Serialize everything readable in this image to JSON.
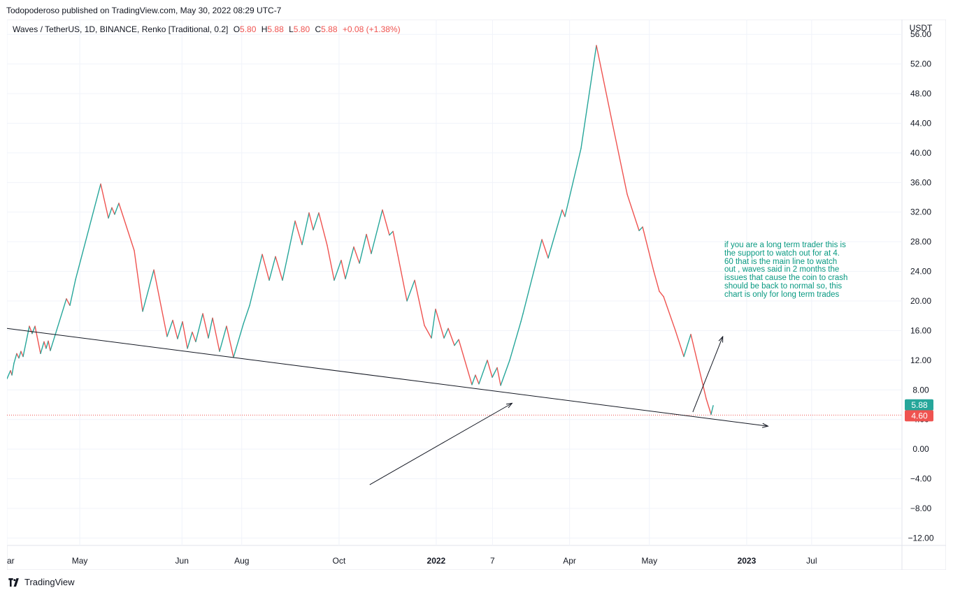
{
  "header": {
    "published": "Todopoderoso published on TradingView.com, May 30, 2022 08:29 UTC-7"
  },
  "legend": {
    "symbol": "Waves / TetherUS, 1D, BINANCE, Renko [Traditional, 0.2]",
    "o_label": "O",
    "o_value": "5.80",
    "h_label": "H",
    "h_value": "5.88",
    "l_label": "L",
    "l_value": "5.80",
    "c_label": "C",
    "c_value": "5.88",
    "change": "+0.08 (+1.38%)"
  },
  "note": {
    "lines": [
      "if you are a long term trader this is",
      "the support to watch out for at 4.",
      "60    that is the main line to watch",
      "out ,  waves said in 2 months   the",
      "issues that cause the coin to crash",
      "should be back to normal so,  this",
      "chart is only for long term trades"
    ]
  },
  "footer": {
    "brand": "TradingView"
  },
  "chart_data": {
    "type": "line",
    "title": "Waves / TetherUS, 1D, BINANCE, Renko [Traditional, 0.2]",
    "ylabel": "USDT",
    "ylim": [
      -13,
      58
    ],
    "y_ticks": [
      "56.00",
      "52.00",
      "48.00",
      "44.00",
      "40.00",
      "36.00",
      "32.00",
      "28.00",
      "24.00",
      "20.00",
      "16.00",
      "12.00",
      "8.00",
      "4.00",
      "0.00",
      "−4.00",
      "−8.00",
      "−12.00"
    ],
    "y_tick_values": [
      56,
      52,
      48,
      44,
      40,
      36,
      32,
      28,
      24,
      20,
      16,
      12,
      8,
      4,
      0,
      -4,
      -8,
      -12
    ],
    "x_ticks": [
      {
        "label": "Mar",
        "shown": "ar",
        "t": 0.0,
        "bold": false
      },
      {
        "label": "May",
        "shown": "May",
        "t": 0.0813,
        "bold": false
      },
      {
        "label": "Jun",
        "shown": "Jun",
        "t": 0.1955,
        "bold": false
      },
      {
        "label": "Aug",
        "shown": "Aug",
        "t": 0.2623,
        "bold": false
      },
      {
        "label": "Oct",
        "shown": "Oct",
        "t": 0.371,
        "bold": false
      },
      {
        "label": "2022",
        "shown": "2022",
        "t": 0.4796,
        "bold": true
      },
      {
        "label": "7",
        "shown": "7",
        "t": 0.5425,
        "bold": false
      },
      {
        "label": "Apr",
        "shown": "Apr",
        "t": 0.6286,
        "bold": false
      },
      {
        "label": "May",
        "shown": "May",
        "t": 0.7178,
        "bold": false
      },
      {
        "label": "2023",
        "shown": "2023",
        "t": 0.8265,
        "bold": true
      },
      {
        "label": "Jul",
        "shown": "Jul",
        "t": 0.8991,
        "bold": false
      }
    ],
    "series": [
      {
        "name": "WAVESUSDT Renko",
        "points": [
          [
            0.0,
            9.5
          ],
          [
            0.0039,
            10.6
          ],
          [
            0.0055,
            10.0
          ],
          [
            0.0078,
            11.6
          ],
          [
            0.0109,
            12.9
          ],
          [
            0.0133,
            12.3
          ],
          [
            0.0156,
            13.2
          ],
          [
            0.018,
            12.5
          ],
          [
            0.025,
            16.6
          ],
          [
            0.0281,
            15.6
          ],
          [
            0.0313,
            16.6
          ],
          [
            0.0375,
            12.9
          ],
          [
            0.0414,
            14.5
          ],
          [
            0.0437,
            13.6
          ],
          [
            0.0461,
            14.6
          ],
          [
            0.0484,
            13.3
          ],
          [
            0.0664,
            20.3
          ],
          [
            0.0703,
            19.4
          ],
          [
            0.0766,
            22.9
          ],
          [
            0.1047,
            35.8
          ],
          [
            0.1133,
            31.2
          ],
          [
            0.1172,
            32.6
          ],
          [
            0.1203,
            31.7
          ],
          [
            0.125,
            33.2
          ],
          [
            0.1422,
            26.8
          ],
          [
            0.1516,
            18.6
          ],
          [
            0.1641,
            24.2
          ],
          [
            0.1789,
            15.2
          ],
          [
            0.1852,
            17.4
          ],
          [
            0.1906,
            14.9
          ],
          [
            0.1961,
            17.2
          ],
          [
            0.2016,
            13.6
          ],
          [
            0.207,
            15.8
          ],
          [
            0.2109,
            14.5
          ],
          [
            0.2188,
            18.3
          ],
          [
            0.225,
            15.0
          ],
          [
            0.2297,
            17.7
          ],
          [
            0.2375,
            13.2
          ],
          [
            0.2453,
            16.6
          ],
          [
            0.2531,
            12.4
          ],
          [
            0.2641,
            16.9
          ],
          [
            0.2711,
            19.4
          ],
          [
            0.2852,
            26.3
          ],
          [
            0.293,
            22.8
          ],
          [
            0.3,
            26.0
          ],
          [
            0.3078,
            22.8
          ],
          [
            0.3219,
            30.8
          ],
          [
            0.3297,
            27.6
          ],
          [
            0.3375,
            31.9
          ],
          [
            0.3422,
            29.6
          ],
          [
            0.3484,
            31.9
          ],
          [
            0.3578,
            27.5
          ],
          [
            0.3656,
            22.8
          ],
          [
            0.3734,
            25.5
          ],
          [
            0.3781,
            23.0
          ],
          [
            0.3875,
            27.3
          ],
          [
            0.3938,
            25.1
          ],
          [
            0.4016,
            29.0
          ],
          [
            0.407,
            26.4
          ],
          [
            0.4195,
            32.3
          ],
          [
            0.4273,
            28.9
          ],
          [
            0.4313,
            29.4
          ],
          [
            0.4367,
            26.2
          ],
          [
            0.4469,
            20.0
          ],
          [
            0.4555,
            22.8
          ],
          [
            0.4664,
            16.7
          ],
          [
            0.4742,
            15.0
          ],
          [
            0.4789,
            18.9
          ],
          [
            0.4883,
            15.0
          ],
          [
            0.493,
            16.3
          ],
          [
            0.5,
            14.0
          ],
          [
            0.5047,
            14.8
          ],
          [
            0.5195,
            8.7
          ],
          [
            0.5234,
            10.0
          ],
          [
            0.5273,
            8.8
          ],
          [
            0.5367,
            12.0
          ],
          [
            0.5422,
            9.7
          ],
          [
            0.5477,
            11.0
          ],
          [
            0.5516,
            8.6
          ],
          [
            0.5617,
            12.0
          ],
          [
            0.5742,
            17.2
          ],
          [
            0.5766,
            18.3
          ],
          [
            0.5977,
            28.3
          ],
          [
            0.6047,
            25.8
          ],
          [
            0.6203,
            32.3
          ],
          [
            0.6234,
            31.4
          ],
          [
            0.6414,
            40.6
          ],
          [
            0.6586,
            54.5
          ],
          [
            0.6766,
            43.9
          ],
          [
            0.693,
            34.4
          ],
          [
            0.7063,
            29.5
          ],
          [
            0.7102,
            30.0
          ],
          [
            0.7227,
            24.0
          ],
          [
            0.7289,
            21.3
          ],
          [
            0.7336,
            20.6
          ],
          [
            0.7469,
            16.0
          ],
          [
            0.7563,
            12.5
          ],
          [
            0.7641,
            15.5
          ],
          [
            0.7813,
            6.8
          ],
          [
            0.7867,
            4.7
          ],
          [
            0.7891,
            5.88
          ]
        ]
      }
    ],
    "support_line": {
      "from": [
        0.0,
        16.3
      ],
      "to": [
        0.8503,
        3.1
      ],
      "arrow_end": true
    },
    "support_level": {
      "value": 4.6,
      "label": "4.60",
      "color": "#ef5350"
    },
    "last_price": {
      "value": 5.88,
      "label": "5.88",
      "color": "#26a69a"
    },
    "annotation_arrows": [
      {
        "from": [
          0.4053,
          -4.8
        ],
        "to": [
          0.5644,
          6.2
        ]
      },
      {
        "from": [
          0.7663,
          5.0
        ],
        "to": [
          0.7998,
          15.2
        ]
      }
    ],
    "colors": {
      "up": "#26a69a",
      "down": "#ef5350",
      "grid": "#f0f3fa",
      "axis_text": "#131722"
    },
    "legend": "top-left"
  }
}
